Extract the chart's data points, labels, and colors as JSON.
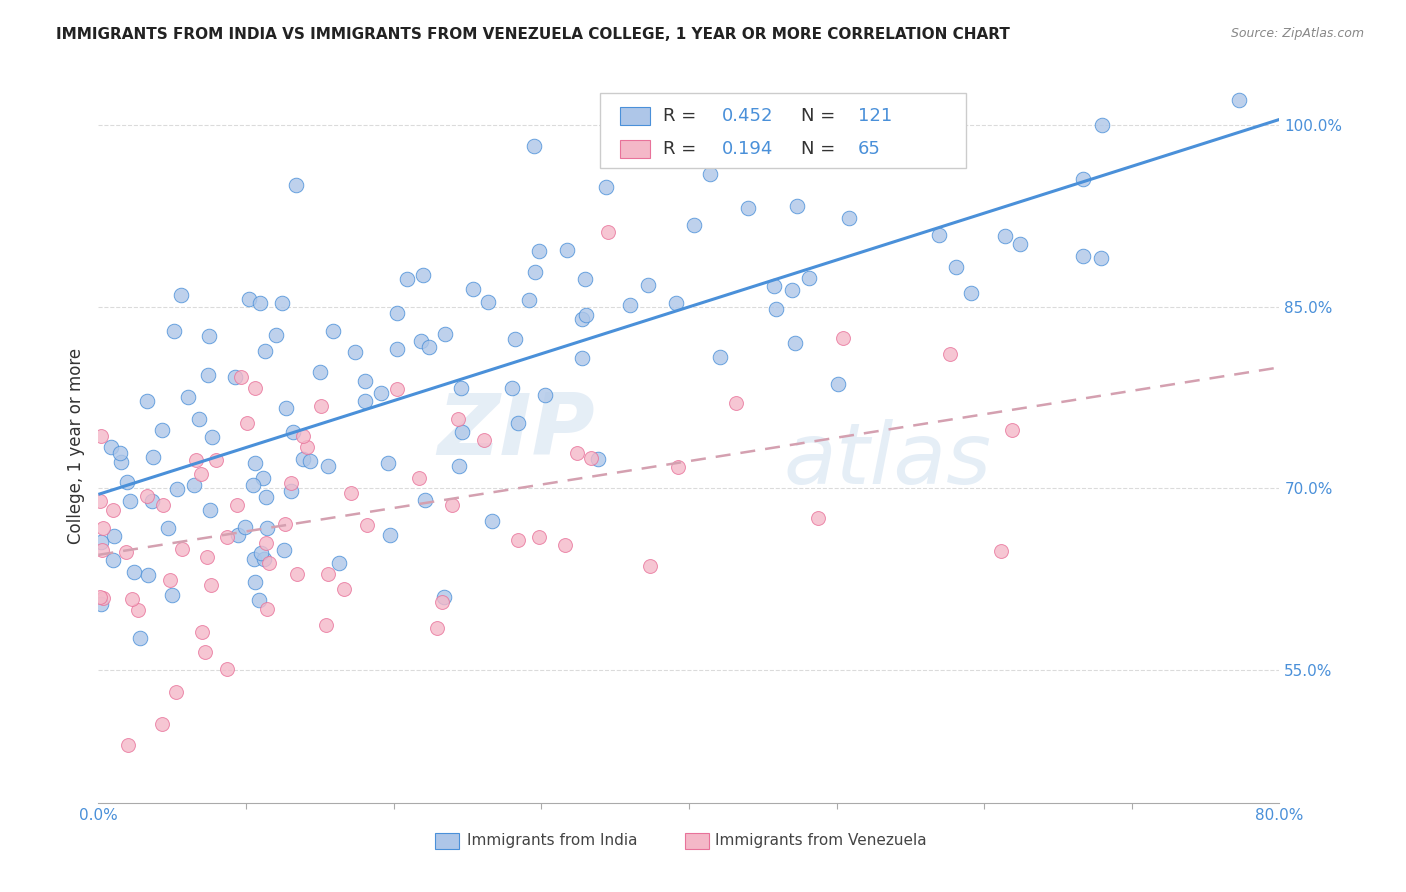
{
  "title": "IMMIGRANTS FROM INDIA VS IMMIGRANTS FROM VENEZUELA COLLEGE, 1 YEAR OR MORE CORRELATION CHART",
  "source": "Source: ZipAtlas.com",
  "ylabel": "College, 1 year or more",
  "india_color": "#aec6e8",
  "india_line_color": "#4a90d9",
  "india_edge_color": "#4a90d9",
  "venezuela_color": "#f4b8c8",
  "venezuela_line_color": "#e8729a",
  "venezuela_trend_color": "#d4a0b0",
  "india_R": 0.452,
  "india_N": 121,
  "venezuela_R": 0.194,
  "venezuela_N": 65,
  "legend_india_label": "Immigrants from India",
  "legend_venezuela_label": "Immigrants from Venezuela",
  "watermark_zip": "ZIP",
  "watermark_atlas": "atlas",
  "background_color": "#ffffff",
  "grid_color": "#d8d8d8",
  "xlim": [
    0.0,
    0.8
  ],
  "ylim": [
    0.44,
    1.03
  ],
  "india_trend_x0": 0.0,
  "india_trend_y0": 0.695,
  "india_trend_x1": 0.8,
  "india_trend_y1": 1.005,
  "venezuela_trend_x0": 0.0,
  "venezuela_trend_y0": 0.645,
  "venezuela_trend_x1": 0.8,
  "venezuela_trend_y1": 0.8,
  "y_ticks_right": [
    0.55,
    0.7,
    0.85,
    1.0
  ],
  "y_tick_labels_right": [
    "55.0%",
    "70.0%",
    "85.0%",
    "100.0%"
  ],
  "x_ticks": [
    0.0,
    0.8
  ],
  "x_tick_labels": [
    "0.0%",
    "80.0%"
  ],
  "tick_color": "#4a90d9",
  "label_color": "#333333",
  "title_color": "#222222",
  "source_color": "#888888"
}
